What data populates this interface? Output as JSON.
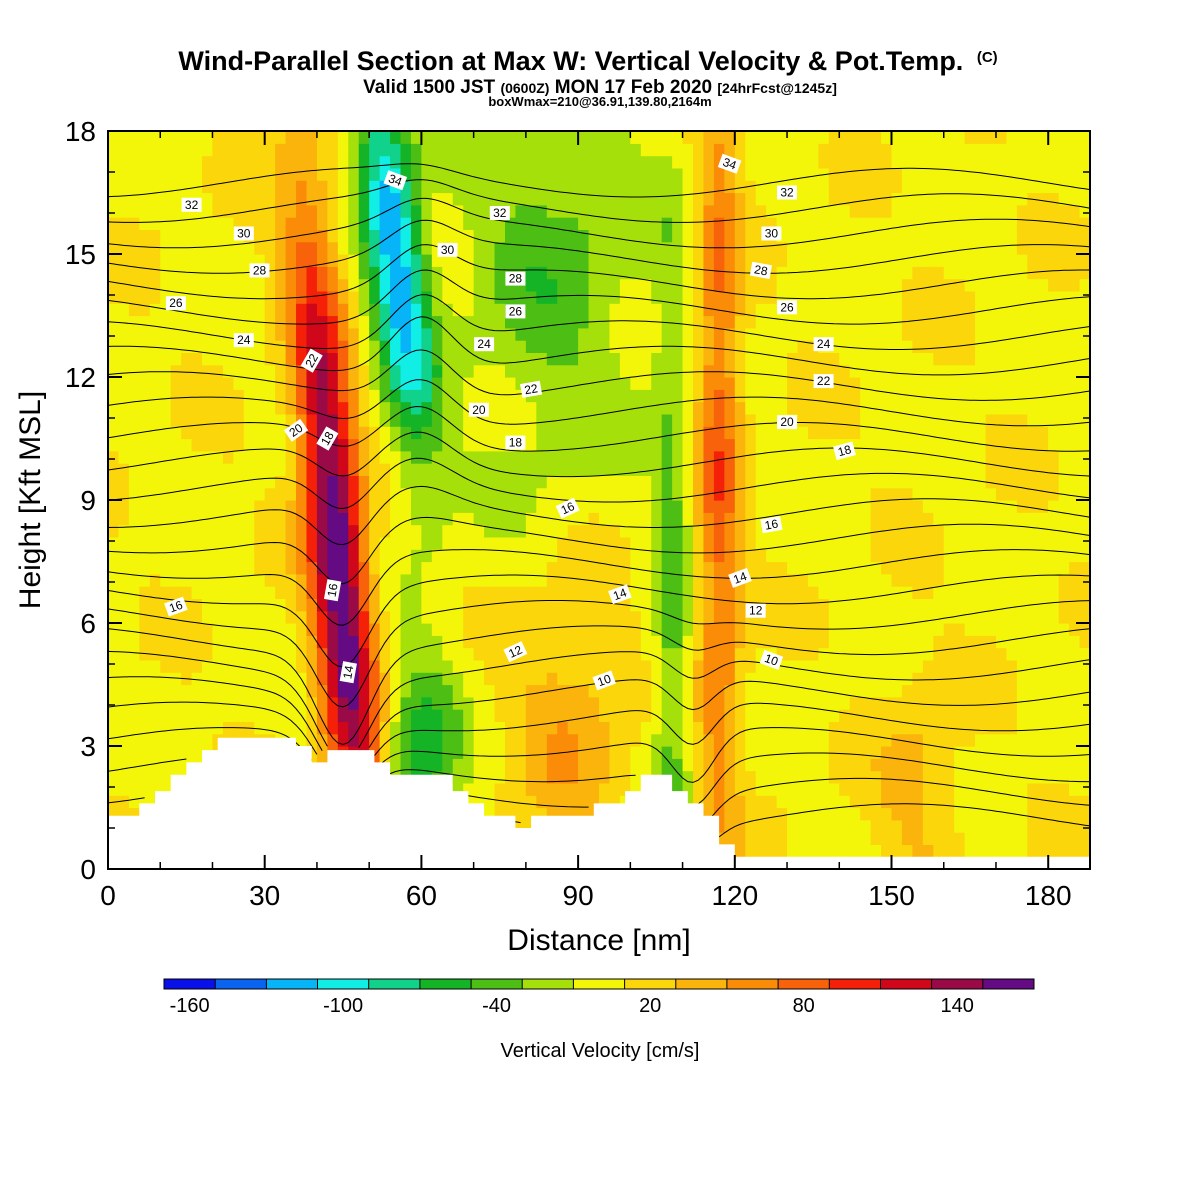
{
  "header": {
    "title": "Wind-Parallel Section at Max W: Vertical Velocity & Pot.Temp.",
    "title_mark": "(C)",
    "subtitle_a": "Valid 1500 JST",
    "subtitle_b": "(0600Z)",
    "subtitle_c": "MON 17 Feb 2020",
    "subtitle_d": "[24hrFcst@1245z]",
    "subtitle2": "boxWmax=210@36.91,139.80,2164m"
  },
  "chart_data": {
    "type": "heatmap",
    "title": "Wind-Parallel Section at Max W: Vertical Velocity & Pot.Temp.",
    "xlabel": "Distance [nm]",
    "ylabel": "Height [Kft MSL]",
    "xlim": [
      0,
      188
    ],
    "ylim": [
      0,
      18
    ],
    "xticks": [
      0,
      30,
      60,
      90,
      120,
      150,
      180
    ],
    "yticks": [
      0,
      3,
      6,
      9,
      12,
      15,
      18
    ],
    "colorbar": {
      "label": "Vertical Velocity [cm/s]",
      "levels": [
        -170,
        -150,
        -130,
        -110,
        -90,
        -70,
        -50,
        -30,
        -10,
        10,
        30,
        50,
        70,
        90,
        110,
        130,
        150,
        170
      ],
      "tick_labels": [
        -160,
        -100,
        -40,
        20,
        80,
        140
      ],
      "colors": [
        "#0a10e8",
        "#0a64f0",
        "#08b4f8",
        "#10eee6",
        "#10d28a",
        "#14b426",
        "#4cbe14",
        "#a6e00a",
        "#f4f60a",
        "#fad60a",
        "#fbb40c",
        "#fb8c08",
        "#f8620a",
        "#f42008",
        "#d0061a",
        "#9a0a46",
        "#640a82"
      ]
    },
    "velocity_features": [
      {
        "name": "updraft",
        "x": 44,
        "z": 7.5,
        "peak": 165,
        "sigma_x": 4,
        "sigma_z": 6,
        "tilt": -0.7
      },
      {
        "name": "updraft",
        "x": 117,
        "z": 10,
        "peak": 75,
        "sigma_x": 3,
        "sigma_z": 8,
        "tilt": 0
      },
      {
        "name": "updraft",
        "x": 88,
        "z": 3.5,
        "peak": 40,
        "sigma_x": 8,
        "sigma_z": 2.5,
        "tilt": 0
      },
      {
        "name": "updraft",
        "x": 155,
        "z": 2,
        "peak": 30,
        "sigma_x": 6,
        "sigma_z": 2,
        "tilt": 0
      },
      {
        "name": "downdraft",
        "x": 55,
        "z": 15,
        "peak": -130,
        "sigma_x": 4,
        "sigma_z": 3.5,
        "tilt": -0.9
      },
      {
        "name": "downdraft",
        "x": 60,
        "z": 3,
        "peak": -70,
        "sigma_x": 5,
        "sigma_z": 1.5,
        "tilt": 0
      },
      {
        "name": "downdraft",
        "x": 85,
        "z": 15,
        "peak": -45,
        "sigma_x": 12,
        "sigma_z": 4,
        "tilt": 0
      },
      {
        "name": "downdraft",
        "x": 108,
        "z": 6,
        "peak": -45,
        "sigma_x": 2.5,
        "sigma_z": 7,
        "tilt": 0
      }
    ],
    "terrain": {
      "x": [
        0,
        3,
        6,
        9,
        12,
        15,
        18,
        21,
        24,
        27,
        30,
        33,
        36,
        39,
        42,
        45,
        48,
        51,
        54,
        57,
        60,
        63,
        66,
        69,
        72,
        75,
        78,
        81,
        84,
        87,
        90,
        93,
        96,
        99,
        102,
        105,
        108,
        111,
        114,
        117,
        120,
        123,
        126,
        129,
        132,
        135,
        138,
        141,
        144,
        147,
        150,
        153,
        156,
        159,
        162,
        165,
        168,
        171,
        174,
        177,
        180,
        183,
        186
      ],
      "height": [
        1.3,
        1.3,
        1.6,
        1.9,
        2.3,
        2.6,
        2.9,
        3.2,
        3.2,
        3.2,
        3.2,
        3.2,
        3.0,
        2.6,
        2.9,
        2.9,
        2.9,
        2.6,
        2.3,
        2.3,
        2.3,
        2.3,
        1.9,
        1.6,
        1.3,
        1.3,
        1.0,
        1.3,
        1.3,
        1.3,
        1.3,
        1.6,
        1.6,
        1.9,
        2.3,
        2.3,
        1.9,
        1.6,
        1.3,
        0.6,
        0.3,
        0.3,
        0.3,
        0.3,
        0.3,
        0.3,
        0.3,
        0.3,
        0.3,
        0.3,
        0.3,
        0.3,
        0.3,
        0.3,
        0.3,
        0.3,
        0.3,
        0.3,
        0.3,
        0.3,
        0.3,
        0.3,
        0.3
      ]
    },
    "theta_contours": {
      "levels": [
        10,
        11,
        12,
        13,
        14,
        15,
        16,
        17,
        18,
        19,
        20,
        21,
        22,
        23,
        24,
        25,
        26,
        27,
        28,
        29,
        30,
        31,
        32,
        33,
        34,
        35
      ],
      "labels": [
        {
          "text": "34",
          "x": 55,
          "z": 16.8,
          "angle": 20
        },
        {
          "text": "32",
          "x": 16,
          "z": 16.2,
          "angle": 0
        },
        {
          "text": "30",
          "x": 26,
          "z": 15.5,
          "angle": 0
        },
        {
          "text": "28",
          "x": 29,
          "z": 14.6,
          "angle": 0
        },
        {
          "text": "26",
          "x": 13,
          "z": 13.8,
          "angle": 0
        },
        {
          "text": "24",
          "x": 26,
          "z": 12.9,
          "angle": 0
        },
        {
          "text": "22",
          "x": 39,
          "z": 12.4,
          "angle": -60
        },
        {
          "text": "20",
          "x": 36,
          "z": 10.7,
          "angle": -35
        },
        {
          "text": "18",
          "x": 42,
          "z": 10.5,
          "angle": -60
        },
        {
          "text": "16",
          "x": 13,
          "z": 6.4,
          "angle": -20
        },
        {
          "text": "16",
          "x": 43,
          "z": 6.8,
          "angle": -80
        },
        {
          "text": "14",
          "x": 46,
          "z": 4.8,
          "angle": -80
        },
        {
          "text": "32",
          "x": 75,
          "z": 16.0,
          "angle": 0
        },
        {
          "text": "30",
          "x": 65,
          "z": 15.1,
          "angle": 0
        },
        {
          "text": "28",
          "x": 78,
          "z": 14.4,
          "angle": 0
        },
        {
          "text": "26",
          "x": 78,
          "z": 13.6,
          "angle": 0
        },
        {
          "text": "24",
          "x": 72,
          "z": 12.8,
          "angle": 0
        },
        {
          "text": "22",
          "x": 81,
          "z": 11.7,
          "angle": -10
        },
        {
          "text": "20",
          "x": 71,
          "z": 11.2,
          "angle": 0
        },
        {
          "text": "18",
          "x": 78,
          "z": 10.4,
          "angle": 0
        },
        {
          "text": "16",
          "x": 88,
          "z": 8.8,
          "angle": -25
        },
        {
          "text": "14",
          "x": 98,
          "z": 6.7,
          "angle": -20
        },
        {
          "text": "12",
          "x": 78,
          "z": 5.3,
          "angle": -25
        },
        {
          "text": "10",
          "x": 95,
          "z": 4.6,
          "angle": -20
        },
        {
          "text": "34",
          "x": 119,
          "z": 17.2,
          "angle": 20
        },
        {
          "text": "32",
          "x": 130,
          "z": 16.5,
          "angle": 0
        },
        {
          "text": "30",
          "x": 127,
          "z": 15.5,
          "angle": 0
        },
        {
          "text": "28",
          "x": 125,
          "z": 14.6,
          "angle": 10
        },
        {
          "text": "26",
          "x": 130,
          "z": 13.7,
          "angle": 0
        },
        {
          "text": "24",
          "x": 137,
          "z": 12.8,
          "angle": 0
        },
        {
          "text": "22",
          "x": 137,
          "z": 11.9,
          "angle": 0
        },
        {
          "text": "20",
          "x": 130,
          "z": 10.9,
          "angle": 0
        },
        {
          "text": "18",
          "x": 141,
          "z": 10.2,
          "angle": -15
        },
        {
          "text": "16",
          "x": 127,
          "z": 8.4,
          "angle": -10
        },
        {
          "text": "14",
          "x": 121,
          "z": 7.1,
          "angle": -20
        },
        {
          "text": "12",
          "x": 124,
          "z": 6.3,
          "angle": 0
        },
        {
          "text": "10",
          "x": 127,
          "z": 5.1,
          "angle": 20
        }
      ]
    }
  }
}
